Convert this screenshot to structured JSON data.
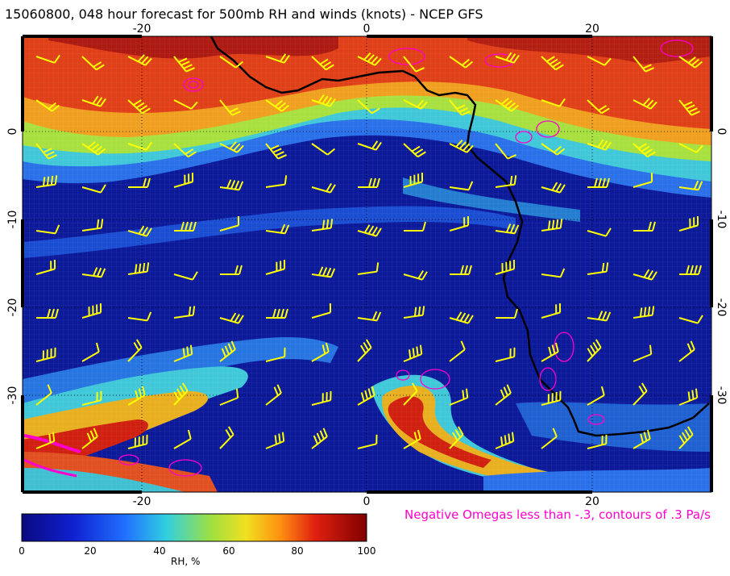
{
  "title": "15060800, 048 hour forecast for 500mb RH and winds (knots) - NCEP GFS",
  "lon_ticks": [
    "-20",
    "0",
    "20"
  ],
  "lat_ticks": [
    "0",
    "-10",
    "-20",
    "-30"
  ],
  "omega_note": "Negative Omegas less than -.3, contours of .3 Pa/s",
  "colorbar": {
    "label": "RH, %",
    "ticks": [
      "0",
      "20",
      "40",
      "60",
      "80",
      "100"
    ],
    "range": [
      0,
      100
    ]
  },
  "colors": {
    "wind_barbs": "#ffff00",
    "omega_contours": "#ff00cc",
    "coastline": "#000000",
    "rh_low": "#0a0a7a",
    "rh_high": "#8b0000"
  },
  "map_extent": {
    "lon": [
      -30,
      31
    ],
    "lat": [
      -40,
      10
    ]
  }
}
